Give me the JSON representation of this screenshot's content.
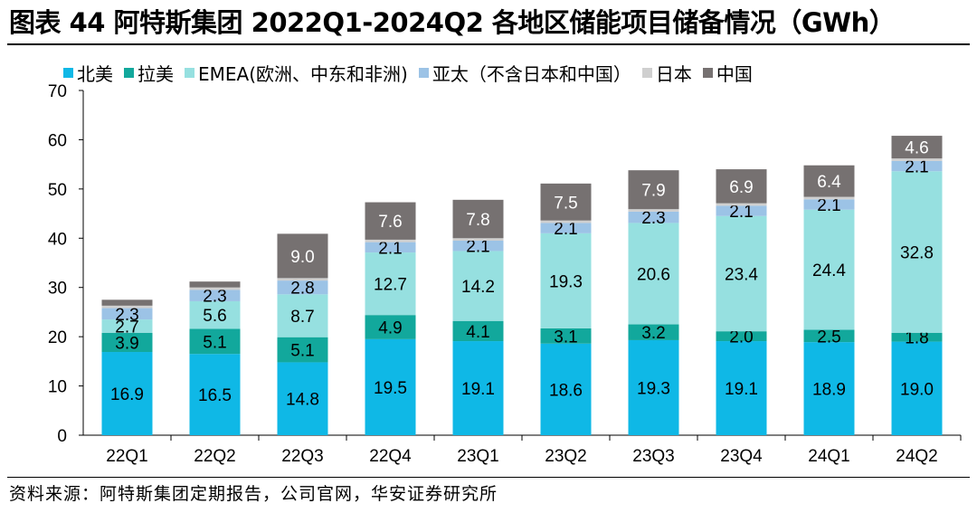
{
  "title": "图表 44  阿特斯集团 2022Q1-2024Q2 各地区储能项目储备情况（GWh）",
  "source": "资料来源：阿特斯集团定期报告，公司官网，华安证券研究所",
  "chart_data": {
    "type": "bar",
    "stacked": true,
    "categories": [
      "22Q1",
      "22Q2",
      "22Q3",
      "22Q4",
      "23Q1",
      "23Q2",
      "23Q3",
      "23Q4",
      "24Q1",
      "24Q2"
    ],
    "ylim": [
      0,
      70
    ],
    "yticks": [
      0,
      10,
      20,
      30,
      40,
      50,
      60,
      70
    ],
    "legend_position": "top",
    "grid": false,
    "series": [
      {
        "name": "北美",
        "color": "#0fb8e6",
        "label_color": "#000000",
        "values": [
          16.9,
          16.5,
          14.8,
          19.5,
          19.1,
          18.6,
          19.3,
          19.1,
          18.9,
          19.0
        ],
        "labels": [
          "16.9",
          "16.5",
          "14.8",
          "19.5",
          "19.1",
          "18.6",
          "19.3",
          "19.1",
          "18.9",
          "19.0"
        ]
      },
      {
        "name": "拉美",
        "color": "#12a89c",
        "label_color": "#000000",
        "values": [
          3.9,
          5.1,
          5.1,
          4.9,
          4.1,
          3.1,
          3.2,
          2.0,
          2.5,
          1.8
        ],
        "labels": [
          "3.9",
          "5.1",
          "5.1",
          "4.9",
          "4.1",
          "3.1",
          "3.2",
          "2.0",
          "2.5",
          "1.8"
        ]
      },
      {
        "name": "EMEA(欧洲、中东和非洲)",
        "color": "#96e0e0",
        "label_color": "#000000",
        "values": [
          2.7,
          5.6,
          8.7,
          12.7,
          14.2,
          19.3,
          20.6,
          23.4,
          24.4,
          32.8
        ],
        "labels": [
          "2.7",
          "5.6",
          "8.7",
          "12.7",
          "14.2",
          "19.3",
          "20.6",
          "23.4",
          "24.4",
          "32.8"
        ]
      },
      {
        "name": "亚太（不含日本和中国）",
        "color": "#9cc3e6",
        "label_color": "#000000",
        "values": [
          2.3,
          2.3,
          2.8,
          2.1,
          2.1,
          2.1,
          2.3,
          2.1,
          2.1,
          2.1
        ],
        "labels": [
          "2.3",
          "2.3",
          "2.8",
          "2.1",
          "2.1",
          "2.1",
          "2.3",
          "2.1",
          "2.1",
          "2.1"
        ]
      },
      {
        "name": "日本",
        "color": "#cfcfcf",
        "label_color": "#000000",
        "values": [
          0.5,
          0.5,
          0.5,
          0.5,
          0.5,
          0.5,
          0.5,
          0.5,
          0.5,
          0.5
        ],
        "labels": []
      },
      {
        "name": "中国",
        "color": "#767171",
        "label_color": "#ffffff",
        "values": [
          1.2,
          1.2,
          9.0,
          7.6,
          7.8,
          7.5,
          7.9,
          6.9,
          6.4,
          4.6
        ],
        "labels": [
          "",
          "",
          "9.0",
          "7.6",
          "7.8",
          "7.5",
          "7.9",
          "6.9",
          "6.4",
          "4.6"
        ]
      }
    ]
  }
}
